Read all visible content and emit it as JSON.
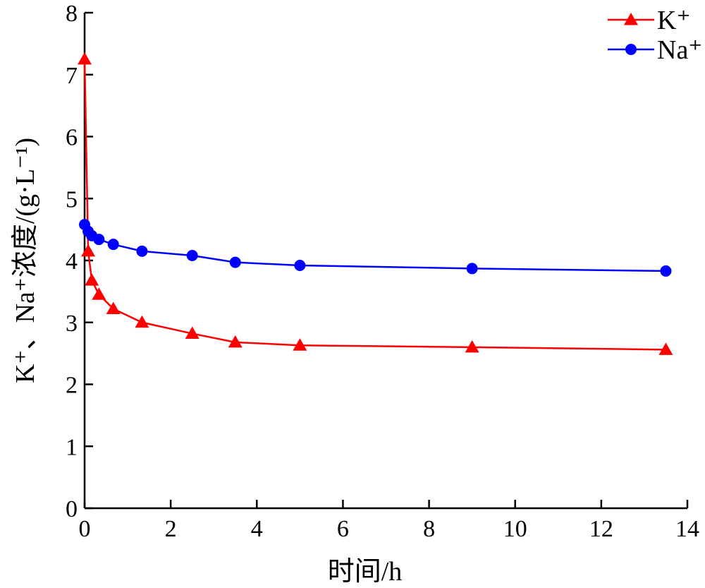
{
  "chart_data": {
    "type": "line",
    "xlabel": "时间/h",
    "ylabel": "K⁺、Na⁺浓度/(g·L⁻¹)",
    "xlim": [
      0,
      14
    ],
    "ylim": [
      0,
      8
    ],
    "x_ticks": [
      "0",
      "2",
      "4",
      "6",
      "8",
      "10",
      "12",
      "14"
    ],
    "y_ticks": [
      "0",
      "1",
      "2",
      "3",
      "4",
      "5",
      "6",
      "7",
      "8"
    ],
    "grid": false,
    "legend_position": "top-right",
    "series": [
      {
        "name": "K⁺",
        "color": "#ff0000",
        "marker": "triangle",
        "x": [
          0,
          0.083,
          0.167,
          0.333,
          0.667,
          1.333,
          2.5,
          3.5,
          5,
          9,
          13.5
        ],
        "y": [
          7.25,
          4.15,
          3.68,
          3.45,
          3.22,
          3.0,
          2.82,
          2.68,
          2.63,
          2.6,
          2.56
        ]
      },
      {
        "name": "Na⁺",
        "color": "#0000ff",
        "marker": "circle",
        "x": [
          0,
          0.083,
          0.167,
          0.333,
          0.667,
          1.333,
          2.5,
          3.5,
          5,
          9,
          13.5
        ],
        "y": [
          4.58,
          4.47,
          4.4,
          4.34,
          4.26,
          4.15,
          4.08,
          3.97,
          3.92,
          3.87,
          3.83
        ]
      }
    ]
  }
}
